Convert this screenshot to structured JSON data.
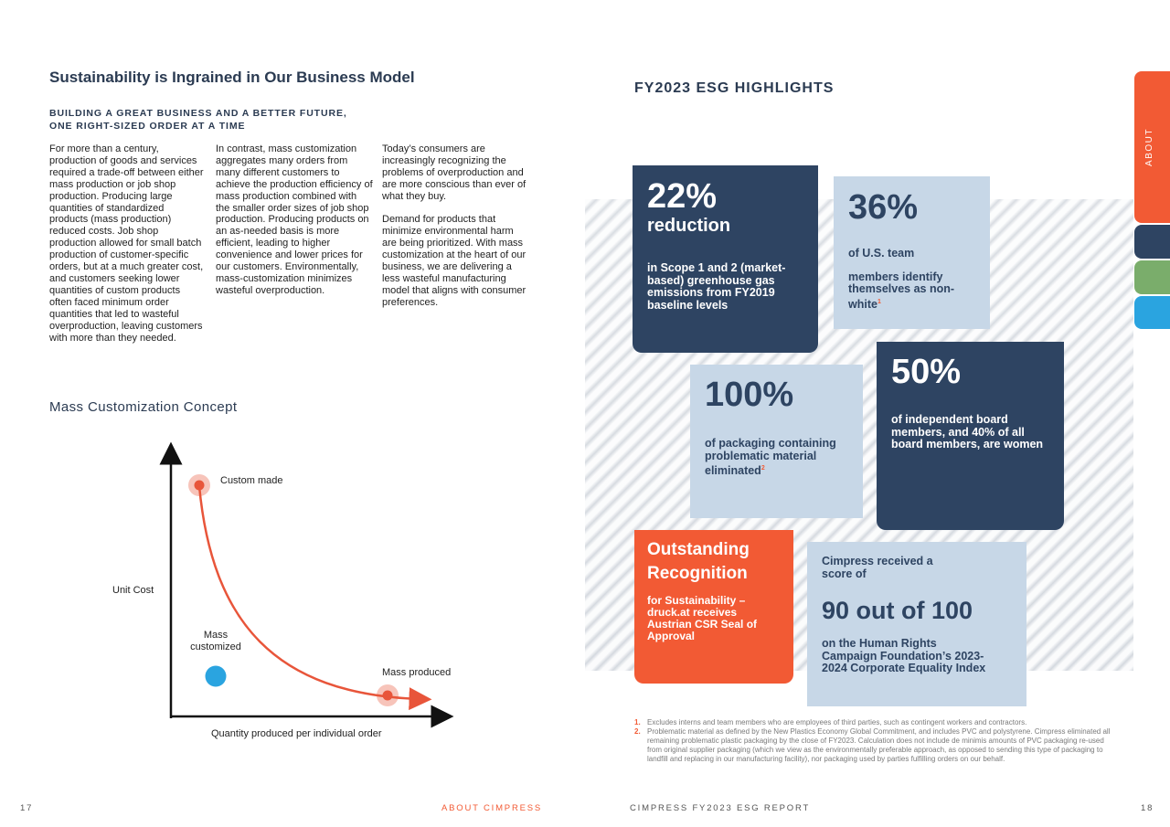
{
  "left_page": {
    "title": "Sustainability is Ingrained in Our Business Model",
    "subheading_lines": [
      "BUILDING A GREAT BUSINESS AND A BETTER FUTURE,",
      "ONE RIGHT-SIZED ORDER AT A TIME"
    ],
    "col1": [
      "For more than a century, production of goods and services required a trade-off between either mass production or job shop production. Producing large quantities of standardized products (mass production) reduced costs. Job shop production allowed for small batch production of customer-specific orders, but at a much greater cost, and customers seeking lower quantities of custom products often faced minimum order quantities that led to wasteful overproduction, leaving customers with more than they needed."
    ],
    "col2": [
      "In contrast, mass customization aggregates many orders from many different customers to achieve the production efficiency of mass production combined with the smaller order sizes of job shop production. Producing products on an as-needed basis is more efficient, leading to higher convenience and lower prices for our customers. Environmentally, mass-customization minimizes wasteful overproduction."
    ],
    "col3": [
      "Today’s consumers are increasingly recognizing the problems of overproduction and are more conscious than ever of what they buy.",
      "Demand for products that minimize environmental harm are being prioritized. With mass customization at the heart of our business, we are delivering a less wasteful manufacturing model that aligns with consumer preferences."
    ],
    "concept_title": "Mass Customization Concept",
    "chart": {
      "y_axis_label": "Unit Cost",
      "x_axis_label": "Quantity produced per individual order",
      "custom_made_label": "Custom made",
      "mass_customized_label": [
        "Mass",
        "customized"
      ],
      "mass_produced_label": "Mass produced",
      "curve_color": "#e8553a",
      "dot_blue": "#2aa4e0"
    }
  },
  "right_page": {
    "title": "FY2023 ESG HIGHLIGHTS",
    "cards": {
      "emissions": {
        "big": "22%",
        "med": "reduction",
        "body": "in Scope 1 and 2 (market-based) greenhouse gas emissions from FY2019 baseline levels"
      },
      "team": {
        "big": "36%",
        "line1": "of U.S. team",
        "line2": "members identify themselves as non-white",
        "footnote_ref": "1"
      },
      "packaging": {
        "big": "100%",
        "body": "of packaging containing problematic material eliminated",
        "footnote_ref": "2"
      },
      "board": {
        "big": "50%",
        "body": "of independent board members, and 40% of all board members, are women"
      },
      "recognition": {
        "med": "Outstanding Recognition",
        "body": "for Sustainability – druck.at receives Austrian CSR Seal of Approval"
      },
      "hrc": {
        "intro": "Cimpress received a score of",
        "score": "90 out of 100",
        "body": "on the Human Rights Campaign Foundation’s 2023-2024 Corporate Equality Index"
      }
    },
    "side_tab": "ABOUT",
    "side_tab_colors": [
      "#f25a34",
      "#2e4462",
      "#7aad6b",
      "#2aa4e0"
    ],
    "footnotes": [
      {
        "num": "1.",
        "text": "Excludes interns and team members who are employees of third parties, such as contingent workers and contractors."
      },
      {
        "num": "2.",
        "text": "Problematic material as defined by the New Plastics Economy Global Commitment, and includes PVC and polystyrene. Cimpress eliminated all remaining problematic plastic packaging by the close of FY2023. Calculation does not include de minimis amounts of PVC packaging re-used from original supplier packaging (which we view as the environmentally preferable approach, as opposed to sending this type of packaging to landfill and replacing in our manufacturing facility), nor packaging used by parties fulfilling orders on our behalf."
      }
    ]
  },
  "footer": {
    "left_page_number": "17",
    "left_section": "ABOUT CIMPRESS",
    "right_report": "CIMPRESS FY2023 ESG REPORT",
    "right_page_number": "18"
  }
}
